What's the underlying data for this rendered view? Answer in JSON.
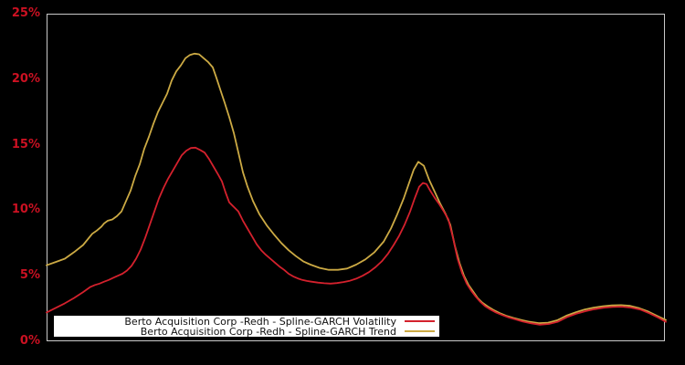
{
  "window": {
    "background": "#000000"
  },
  "chart_data": {
    "type": "line",
    "title": "",
    "x_axis": {
      "visible_labels": false
    },
    "y_axis": {
      "min": 0,
      "max": 25,
      "unit": "%",
      "ticks": [
        {
          "label": "25%",
          "value": 25
        },
        {
          "label": "20%",
          "value": 20
        },
        {
          "label": "15%",
          "value": 15
        },
        {
          "label": "10%",
          "value": 10
        },
        {
          "label": "5%",
          "value": 5
        },
        {
          "label": "0%",
          "value": 0
        }
      ]
    },
    "grid": false,
    "colors": {
      "tick_label": "#cc1122",
      "frame": "#c9c9c9",
      "legend_bg": "#ffffff",
      "legend_border": "#000000"
    },
    "legend": [
      {
        "label": "Berto Acquisition Corp -Redh - Spline-GARCH Volatility",
        "color": "#d4212d",
        "series_key": "volatility"
      },
      {
        "label": "Berto Acquisition Corp -Redh - Spline-GARCH Trend",
        "color": "#ccaa44",
        "series_key": "trend"
      }
    ],
    "series": [
      {
        "key": "trend",
        "name": "Berto Acquisition Corp -Redh - Spline-GARCH Trend",
        "color": "#ccaa44",
        "points": [
          [
            51,
            5.8
          ],
          [
            61,
            6.05
          ],
          [
            71,
            6.3
          ],
          [
            81,
            6.8
          ],
          [
            91,
            7.35
          ],
          [
            101,
            8.2
          ],
          [
            106,
            8.45
          ],
          [
            111,
            8.75
          ],
          [
            114,
            9.0
          ],
          [
            118,
            9.2
          ],
          [
            123,
            9.3
          ],
          [
            128,
            9.55
          ],
          [
            133,
            9.9
          ],
          [
            138,
            10.7
          ],
          [
            143,
            11.5
          ],
          [
            148,
            12.6
          ],
          [
            153,
            13.5
          ],
          [
            158,
            14.7
          ],
          [
            163,
            15.6
          ],
          [
            168,
            16.6
          ],
          [
            173,
            17.5
          ],
          [
            178,
            18.2
          ],
          [
            183,
            18.9
          ],
          [
            188,
            19.9
          ],
          [
            193,
            20.6
          ],
          [
            198,
            21.05
          ],
          [
            203,
            21.6
          ],
          [
            208,
            21.85
          ],
          [
            213,
            21.95
          ],
          [
            218,
            21.9
          ],
          [
            223,
            21.6
          ],
          [
            228,
            21.3
          ],
          [
            233,
            20.9
          ],
          [
            237,
            20.1
          ],
          [
            241,
            19.25
          ],
          [
            246,
            18.2
          ],
          [
            251,
            17.1
          ],
          [
            256,
            15.9
          ],
          [
            261,
            14.4
          ],
          [
            266,
            12.9
          ],
          [
            271,
            11.8
          ],
          [
            277,
            10.7
          ],
          [
            284,
            9.7
          ],
          [
            292,
            8.85
          ],
          [
            300,
            8.15
          ],
          [
            308,
            7.5
          ],
          [
            316,
            6.95
          ],
          [
            324,
            6.5
          ],
          [
            332,
            6.1
          ],
          [
            340,
            5.85
          ],
          [
            350,
            5.6
          ],
          [
            360,
            5.45
          ],
          [
            370,
            5.45
          ],
          [
            380,
            5.55
          ],
          [
            390,
            5.85
          ],
          [
            400,
            6.25
          ],
          [
            410,
            6.8
          ],
          [
            420,
            7.6
          ],
          [
            428,
            8.6
          ],
          [
            435,
            9.7
          ],
          [
            442,
            10.9
          ],
          [
            448,
            12.1
          ],
          [
            453,
            13.1
          ],
          [
            458,
            13.7
          ],
          [
            464,
            13.4
          ],
          [
            470,
            12.3
          ],
          [
            476,
            11.4
          ],
          [
            482,
            10.5
          ],
          [
            488,
            9.7
          ],
          [
            493,
            8.9
          ],
          [
            498,
            7.3
          ],
          [
            503,
            6.0
          ],
          [
            508,
            5.0
          ],
          [
            513,
            4.3
          ],
          [
            518,
            3.8
          ],
          [
            523,
            3.3
          ],
          [
            528,
            2.95
          ],
          [
            534,
            2.65
          ],
          [
            540,
            2.4
          ],
          [
            547,
            2.15
          ],
          [
            554,
            1.95
          ],
          [
            562,
            1.78
          ],
          [
            571,
            1.62
          ],
          [
            580,
            1.48
          ],
          [
            590,
            1.38
          ],
          [
            600,
            1.42
          ],
          [
            610,
            1.6
          ],
          [
            620,
            1.95
          ],
          [
            630,
            2.2
          ],
          [
            640,
            2.42
          ],
          [
            650,
            2.57
          ],
          [
            660,
            2.67
          ],
          [
            670,
            2.74
          ],
          [
            680,
            2.76
          ],
          [
            690,
            2.7
          ],
          [
            700,
            2.52
          ],
          [
            710,
            2.26
          ],
          [
            720,
            1.92
          ],
          [
            729,
            1.62
          ]
        ]
      },
      {
        "key": "volatility",
        "name": "Berto Acquisition Corp -Redh - Spline-GARCH Volatility",
        "color": "#d4212d",
        "points": [
          [
            51,
            2.2
          ],
          [
            61,
            2.55
          ],
          [
            71,
            2.9
          ],
          [
            81,
            3.3
          ],
          [
            91,
            3.75
          ],
          [
            99,
            4.15
          ],
          [
            104,
            4.3
          ],
          [
            109,
            4.4
          ],
          [
            114,
            4.55
          ],
          [
            119,
            4.68
          ],
          [
            124,
            4.85
          ],
          [
            129,
            5.0
          ],
          [
            134,
            5.15
          ],
          [
            139,
            5.4
          ],
          [
            144,
            5.75
          ],
          [
            149,
            6.3
          ],
          [
            154,
            7.0
          ],
          [
            159,
            7.9
          ],
          [
            164,
            8.9
          ],
          [
            169,
            9.9
          ],
          [
            174,
            10.9
          ],
          [
            179,
            11.7
          ],
          [
            184,
            12.4
          ],
          [
            189,
            13.0
          ],
          [
            194,
            13.6
          ],
          [
            199,
            14.2
          ],
          [
            204,
            14.55
          ],
          [
            209,
            14.75
          ],
          [
            214,
            14.78
          ],
          [
            219,
            14.6
          ],
          [
            224,
            14.4
          ],
          [
            229,
            13.9
          ],
          [
            234,
            13.3
          ],
          [
            239,
            12.7
          ],
          [
            243,
            12.2
          ],
          [
            247,
            11.35
          ],
          [
            251,
            10.6
          ],
          [
            256,
            10.25
          ],
          [
            261,
            9.9
          ],
          [
            266,
            9.2
          ],
          [
            271,
            8.6
          ],
          [
            276,
            8.0
          ],
          [
            281,
            7.4
          ],
          [
            286,
            6.95
          ],
          [
            291,
            6.6
          ],
          [
            296,
            6.3
          ],
          [
            301,
            6.0
          ],
          [
            306,
            5.7
          ],
          [
            311,
            5.45
          ],
          [
            316,
            5.15
          ],
          [
            321,
            4.95
          ],
          [
            326,
            4.8
          ],
          [
            331,
            4.68
          ],
          [
            336,
            4.6
          ],
          [
            341,
            4.55
          ],
          [
            348,
            4.48
          ],
          [
            355,
            4.43
          ],
          [
            362,
            4.4
          ],
          [
            369,
            4.44
          ],
          [
            376,
            4.52
          ],
          [
            383,
            4.62
          ],
          [
            390,
            4.78
          ],
          [
            397,
            5.0
          ],
          [
            404,
            5.28
          ],
          [
            411,
            5.65
          ],
          [
            418,
            6.1
          ],
          [
            425,
            6.7
          ],
          [
            431,
            7.35
          ],
          [
            437,
            8.05
          ],
          [
            443,
            8.9
          ],
          [
            449,
            9.9
          ],
          [
            454,
            10.9
          ],
          [
            459,
            11.8
          ],
          [
            463,
            12.08
          ],
          [
            467,
            12.0
          ],
          [
            471,
            11.5
          ],
          [
            476,
            10.95
          ],
          [
            481,
            10.45
          ],
          [
            486,
            9.9
          ],
          [
            491,
            9.3
          ],
          [
            496,
            7.9
          ],
          [
            501,
            6.3
          ],
          [
            506,
            5.2
          ],
          [
            511,
            4.4
          ],
          [
            516,
            3.85
          ],
          [
            521,
            3.4
          ],
          [
            526,
            3.0
          ],
          [
            531,
            2.68
          ],
          [
            537,
            2.42
          ],
          [
            543,
            2.2
          ],
          [
            550,
            2.0
          ],
          [
            557,
            1.82
          ],
          [
            564,
            1.68
          ],
          [
            572,
            1.52
          ],
          [
            581,
            1.38
          ],
          [
            591,
            1.27
          ],
          [
            601,
            1.32
          ],
          [
            611,
            1.5
          ],
          [
            621,
            1.85
          ],
          [
            631,
            2.1
          ],
          [
            641,
            2.3
          ],
          [
            651,
            2.45
          ],
          [
            661,
            2.56
          ],
          [
            671,
            2.62
          ],
          [
            681,
            2.64
          ],
          [
            691,
            2.57
          ],
          [
            701,
            2.42
          ],
          [
            711,
            2.14
          ],
          [
            721,
            1.8
          ],
          [
            729,
            1.48
          ]
        ]
      }
    ]
  }
}
